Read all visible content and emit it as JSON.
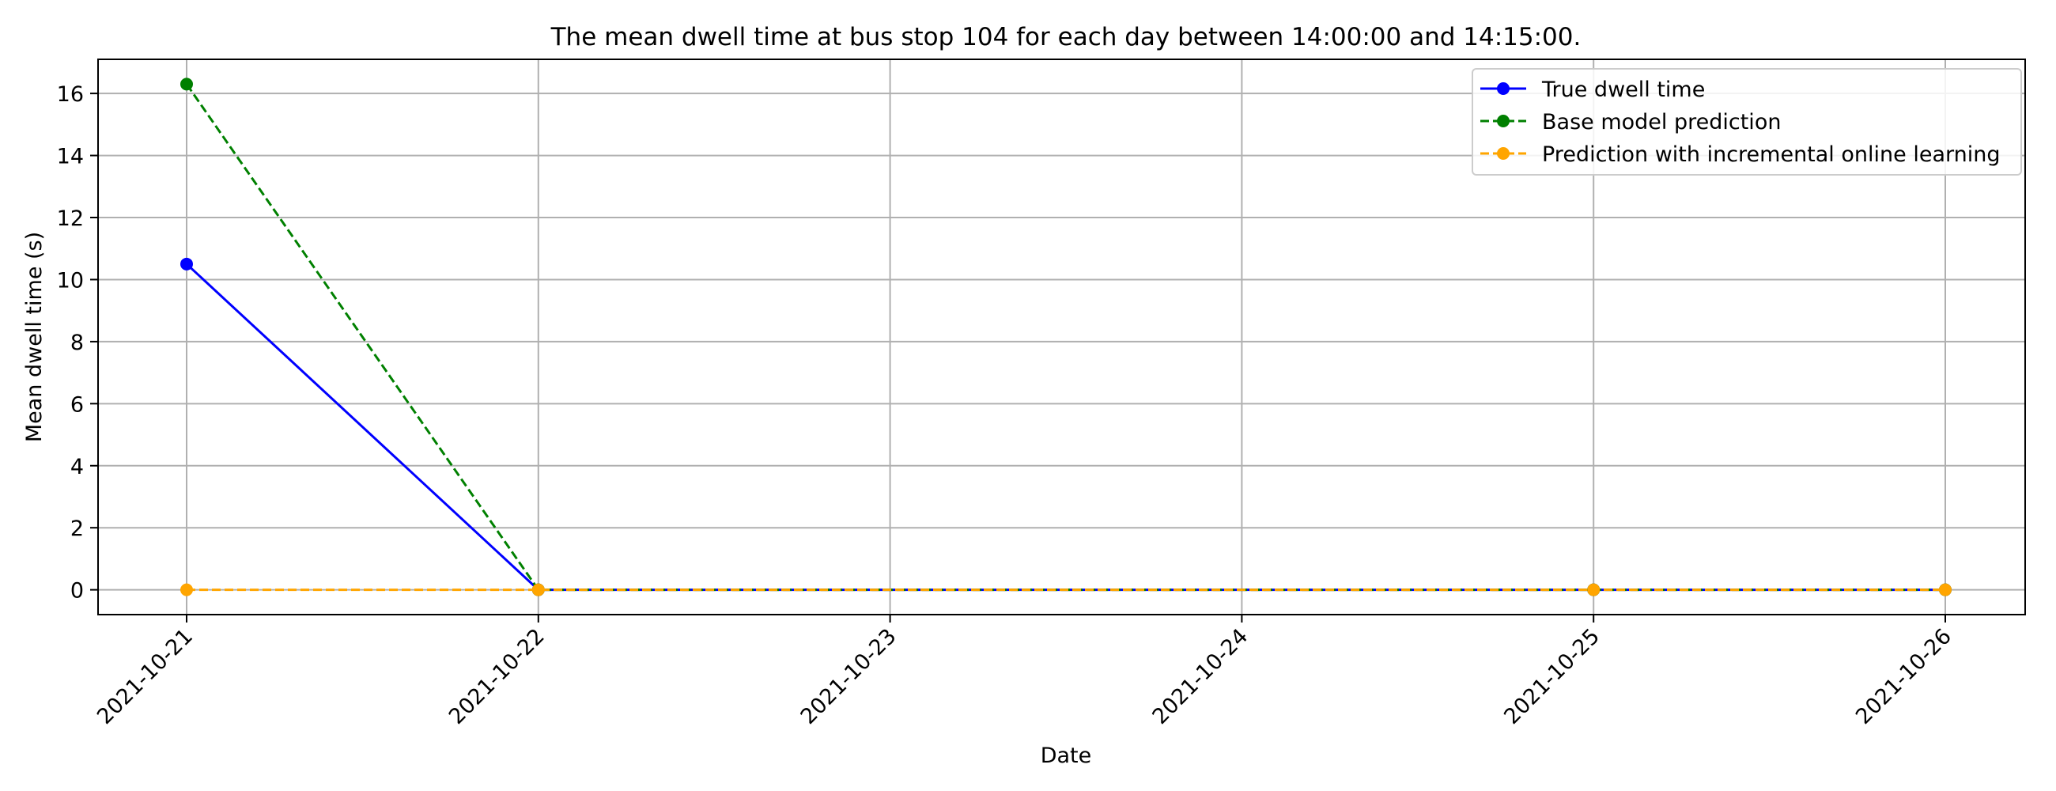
{
  "chart_data": {
    "type": "line",
    "title": "The mean dwell time at bus stop 104 for each day between 14:00:00 and 14:15:00.",
    "xlabel": "Date",
    "ylabel": "Mean dwell time (s)",
    "categories": [
      "2021-10-21",
      "2021-10-22",
      "2021-10-23",
      "2021-10-24",
      "2021-10-25",
      "2021-10-26"
    ],
    "y_ticks": [
      0,
      2,
      4,
      6,
      8,
      10,
      12,
      14,
      16
    ],
    "ylim": [
      -0.8,
      17.1
    ],
    "grid": true,
    "legend_position": "top-right",
    "series": [
      {
        "name": "True dwell time",
        "color": "#0000ff",
        "linestyle": "solid",
        "marker": "circle",
        "x": [
          "2021-10-21",
          "2021-10-22",
          "2021-10-25",
          "2021-10-26"
        ],
        "values": [
          10.5,
          0,
          0,
          0
        ]
      },
      {
        "name": "Base model prediction",
        "color": "#008000",
        "linestyle": "dashed",
        "marker": "circle",
        "x": [
          "2021-10-21",
          "2021-10-22",
          "2021-10-25",
          "2021-10-26"
        ],
        "values": [
          16.3,
          0,
          0,
          0
        ]
      },
      {
        "name": "Prediction with incremental online learning",
        "color": "#ffa500",
        "linestyle": "dashed",
        "marker": "circle",
        "x": [
          "2021-10-21",
          "2021-10-22",
          "2021-10-25",
          "2021-10-26"
        ],
        "values": [
          0,
          0,
          0,
          0
        ]
      }
    ]
  }
}
